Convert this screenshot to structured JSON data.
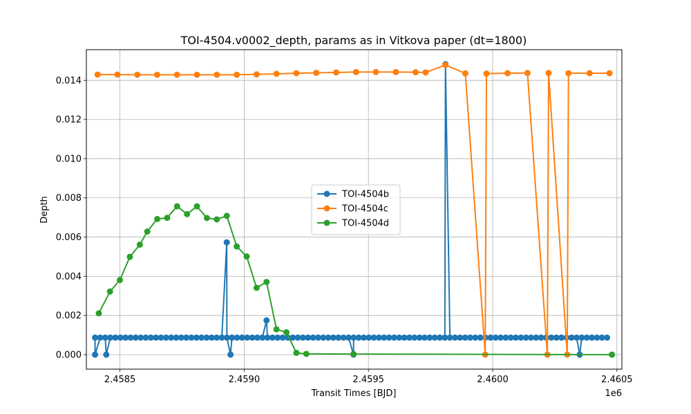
{
  "chart_data": {
    "type": "line",
    "title": "TOI-4504.v0002_depth, params as in Vitkova paper (dt=1800)",
    "xlabel": "Transit Times [BJD]",
    "ylabel": "Depth",
    "x_offset_label": "1e6",
    "xlim": [
      2458365,
      2460520
    ],
    "ylim": [
      -0.00074,
      0.01556
    ],
    "x_ticks": [
      2458500,
      2459000,
      2459500,
      2460000,
      2460500
    ],
    "x_tick_labels": [
      "2.4585",
      "2.4590",
      "2.4595",
      "2.4600",
      "2.4605"
    ],
    "y_ticks": [
      0,
      0.002,
      0.004,
      0.006,
      0.008,
      0.01,
      0.012,
      0.014
    ],
    "y_tick_labels": [
      "0.000",
      "0.002",
      "0.004",
      "0.006",
      "0.008",
      "0.010",
      "0.012",
      "0.014"
    ],
    "grid": true,
    "legend_position": "center",
    "series": [
      {
        "name": "TOI-4504b",
        "color": "#1f77b4",
        "base_depth": 0.00087,
        "x_start": 2458400,
        "x_end": 2460480,
        "cadence": 20.4,
        "special": [
          {
            "x": 2458400,
            "y": 0.0
          },
          {
            "x": 2458445,
            "y": 0.0
          },
          {
            "x": 2458930,
            "y": 0.00573
          },
          {
            "x": 2458945,
            "y": 0.0
          },
          {
            "x": 2459090,
            "y": 0.00175
          },
          {
            "x": 2459440,
            "y": 0.0
          },
          {
            "x": 2459810,
            "y": 0.01482
          },
          {
            "x": 2460350,
            "y": 0.0
          }
        ]
      },
      {
        "name": "TOI-4504c",
        "color": "#ff7f0e",
        "x": [
          2458410,
          2458490,
          2458570,
          2458650,
          2458730,
          2458810,
          2458890,
          2458970,
          2459050,
          2459130,
          2459210,
          2459290,
          2459370,
          2459450,
          2459530,
          2459610,
          2459690,
          2459730,
          2459810,
          2459890,
          2459970,
          2459975,
          2460060,
          2460140,
          2460220,
          2460225,
          2460300,
          2460305,
          2460390,
          2460470
        ],
        "y": [
          0.01429,
          0.01429,
          0.01428,
          0.01428,
          0.01428,
          0.01428,
          0.01428,
          0.01428,
          0.0143,
          0.01433,
          0.01436,
          0.01438,
          0.0144,
          0.01442,
          0.01442,
          0.01442,
          0.01441,
          0.0144,
          0.01478,
          0.01435,
          0.0,
          0.01434,
          0.01436,
          0.01437,
          0.0,
          0.01437,
          0.0,
          0.01436,
          0.01436,
          0.01436
        ]
      },
      {
        "name": "TOI-4504d",
        "color": "#2ca02c",
        "x": [
          2458415,
          2458460,
          2458500,
          2458540,
          2458580,
          2458610,
          2458650,
          2458690,
          2458730,
          2458770,
          2458810,
          2458850,
          2458890,
          2458930,
          2458970,
          2459010,
          2459050,
          2459090,
          2459130,
          2459170,
          2459210,
          2459250,
          2459440,
          2460480
        ],
        "y": [
          0.00211,
          0.00322,
          0.00381,
          0.00499,
          0.00561,
          0.00628,
          0.00692,
          0.00698,
          0.00757,
          0.00717,
          0.00757,
          0.00697,
          0.0069,
          0.00708,
          0.00552,
          0.00501,
          0.00341,
          0.00371,
          0.00129,
          0.00114,
          9e-05,
          4e-05,
          3e-05,
          0.0
        ]
      }
    ]
  }
}
